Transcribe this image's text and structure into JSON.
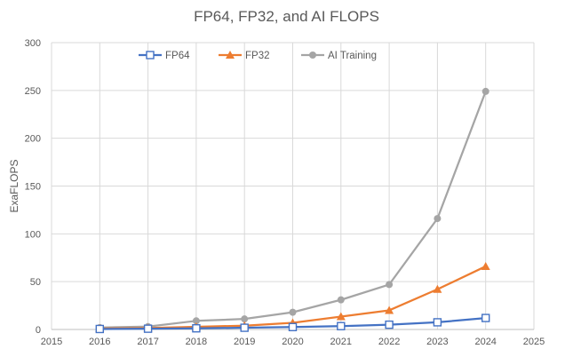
{
  "chart_data": {
    "type": "line",
    "title": "FP64, FP32, and AI FLOPS",
    "xlabel": "",
    "ylabel": "ExaFLOPS",
    "xlim": [
      2015,
      2025
    ],
    "ylim": [
      0,
      300
    ],
    "x_ticks": [
      2015,
      2016,
      2017,
      2018,
      2019,
      2020,
      2021,
      2022,
      2023,
      2024,
      2025
    ],
    "y_ticks": [
      0,
      50,
      100,
      150,
      200,
      250,
      300
    ],
    "grid": true,
    "legend_position": "top",
    "x": [
      2016,
      2017,
      2018,
      2019,
      2020,
      2021,
      2022,
      2023,
      2024
    ],
    "series": [
      {
        "name": "FP64",
        "color": "#4472c4",
        "marker": "open-square",
        "values": [
          0.5,
          0.8,
          1.2,
          1.8,
          2.5,
          3.5,
          5,
          7.5,
          12
        ]
      },
      {
        "name": "FP32",
        "color": "#ed7d31",
        "marker": "triangle",
        "values": [
          1,
          1.5,
          2.8,
          4,
          7,
          13.5,
          20,
          42,
          66
        ]
      },
      {
        "name": "AI Training",
        "color": "#a5a5a5",
        "marker": "circle",
        "values": [
          2,
          3,
          9,
          11,
          18,
          31,
          47,
          116,
          249
        ]
      }
    ]
  }
}
